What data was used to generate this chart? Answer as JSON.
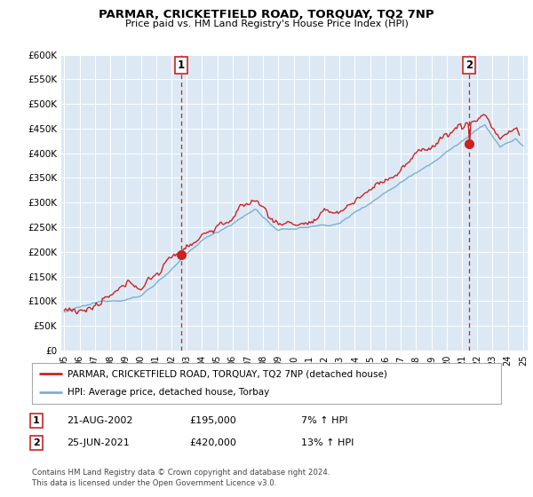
{
  "title": "PARMAR, CRICKETFIELD ROAD, TORQUAY, TQ2 7NP",
  "subtitle": "Price paid vs. HM Land Registry's House Price Index (HPI)",
  "ylim": [
    0,
    600000
  ],
  "yticks": [
    0,
    50000,
    100000,
    150000,
    200000,
    250000,
    300000,
    350000,
    400000,
    450000,
    500000,
    550000,
    600000
  ],
  "ytick_labels": [
    "£0",
    "£50K",
    "£100K",
    "£150K",
    "£200K",
    "£250K",
    "£300K",
    "£350K",
    "£400K",
    "£450K",
    "£500K",
    "£550K",
    "£600K"
  ],
  "hpi_color": "#7bafd4",
  "price_color": "#cc2222",
  "marker_color": "#cc2222",
  "vline_color": "#cc2222",
  "bg_color": "#dce9f5",
  "grid_color": "#ffffff",
  "sale1_year": 2002.64,
  "sale1_price": 195000,
  "sale1_label": "1",
  "sale1_date": "21-AUG-2002",
  "sale1_hpi_pct": "7%",
  "sale2_year": 2021.48,
  "sale2_price": 420000,
  "sale2_label": "2",
  "sale2_date": "25-JUN-2021",
  "sale2_hpi_pct": "13%",
  "legend_entry1": "PARMAR, CRICKETFIELD ROAD, TORQUAY, TQ2 7NP (detached house)",
  "legend_entry2": "HPI: Average price, detached house, Torbay",
  "footer1": "Contains HM Land Registry data © Crown copyright and database right 2024.",
  "footer2": "This data is licensed under the Open Government Licence v3.0.",
  "background_color": "#ffffff"
}
